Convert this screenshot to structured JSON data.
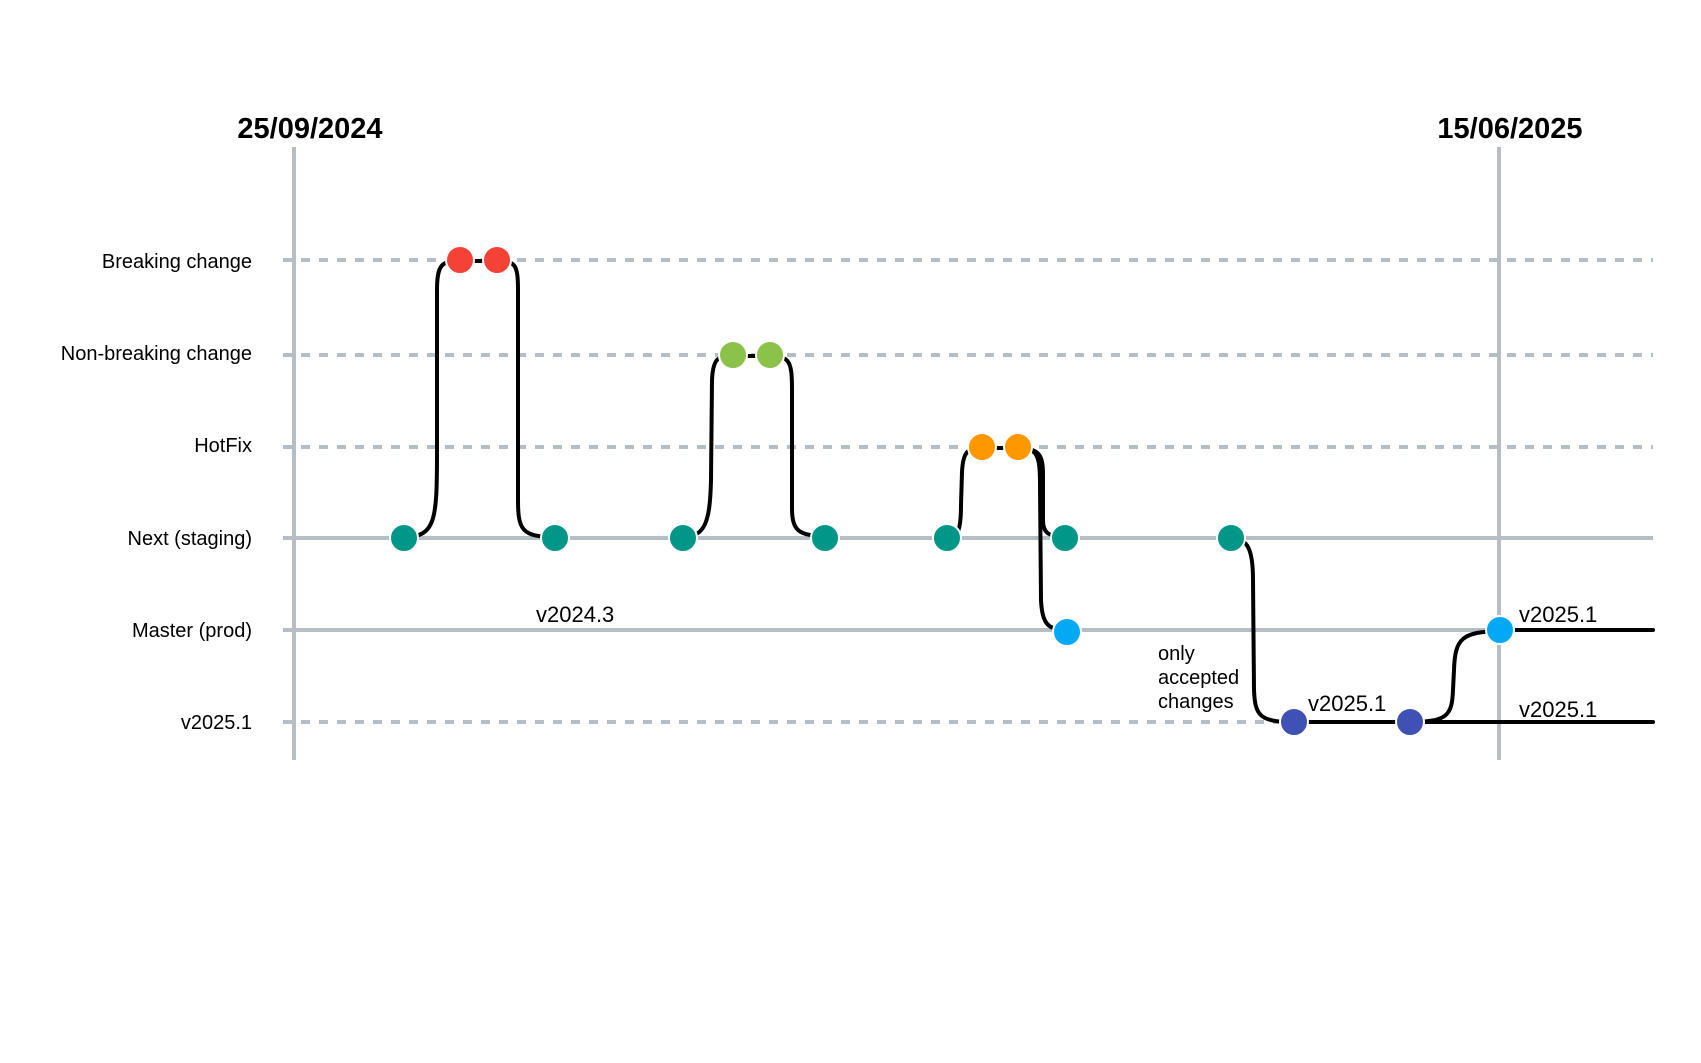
{
  "dates": {
    "start": "25/09/2024",
    "end": "15/06/2025"
  },
  "lanes": [
    {
      "label": "Breaking change",
      "style": "dashed"
    },
    {
      "label": "Non-breaking change",
      "style": "dashed"
    },
    {
      "label": "HotFix",
      "style": "dashed"
    },
    {
      "label": "Next (staging)",
      "style": "solid"
    },
    {
      "label": "Master (prod)",
      "style": "solid"
    },
    {
      "label": "v2025.1",
      "style": "dashed"
    }
  ],
  "annotations": {
    "master_release_old": "v2024.3",
    "release_branch_tag": "v2025.1",
    "master_release_new": "v2025.1",
    "release_branch_end_tag": "v2025.1",
    "note_line1": "only",
    "note_line2": "accepted",
    "note_line3": "changes"
  },
  "colors": {
    "breaking": "#f44336",
    "non_breaking": "#8bc34a",
    "hotfix": "#ff9800",
    "staging": "#009688",
    "prod": "#03a9f4",
    "release": "#3f51b5",
    "lane_line": "#b4bec4",
    "flow_line": "#000000"
  },
  "commits": [
    {
      "lane": "Next (staging)",
      "color_key": "staging"
    },
    {
      "lane": "Breaking change",
      "color_key": "breaking"
    },
    {
      "lane": "Breaking change",
      "color_key": "breaking"
    },
    {
      "lane": "Next (staging)",
      "color_key": "staging"
    },
    {
      "lane": "Next (staging)",
      "color_key": "staging"
    },
    {
      "lane": "Non-breaking change",
      "color_key": "non_breaking"
    },
    {
      "lane": "Non-breaking change",
      "color_key": "non_breaking"
    },
    {
      "lane": "Next (staging)",
      "color_key": "staging"
    },
    {
      "lane": "Next (staging)",
      "color_key": "staging"
    },
    {
      "lane": "HotFix",
      "color_key": "hotfix"
    },
    {
      "lane": "HotFix",
      "color_key": "hotfix"
    },
    {
      "lane": "Next (staging)",
      "color_key": "staging"
    },
    {
      "lane": "Master (prod)",
      "color_key": "prod"
    },
    {
      "lane": "Next (staging)",
      "color_key": "staging"
    },
    {
      "lane": "v2025.1",
      "color_key": "release"
    },
    {
      "lane": "v2025.1",
      "color_key": "release"
    },
    {
      "lane": "Master (prod)",
      "color_key": "prod"
    }
  ]
}
